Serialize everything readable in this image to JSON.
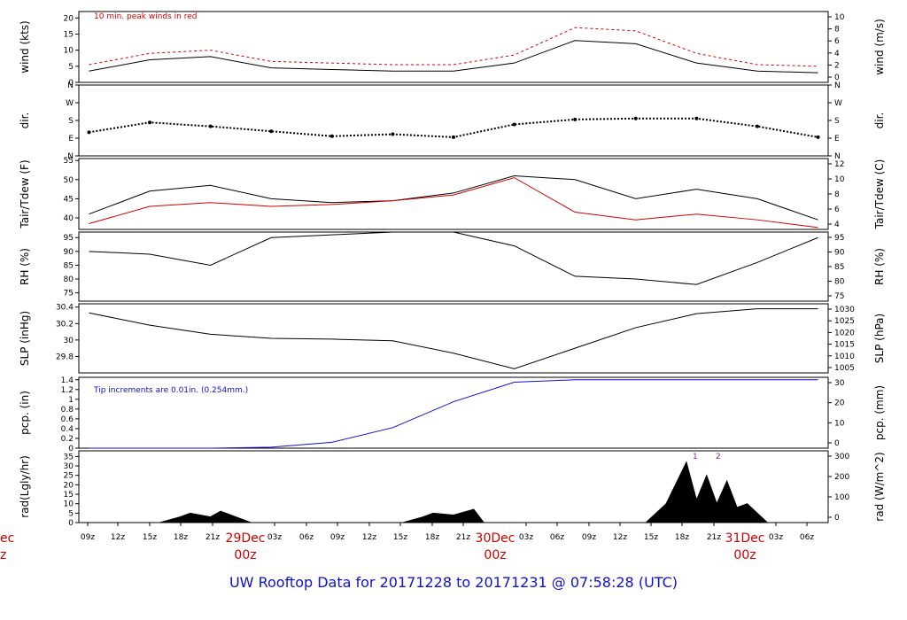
{
  "chart_data": {
    "type": "line",
    "title": "UW Rooftop Data for 20171228  to  20171231 @ 07:58:28  (UTC)",
    "x_tick_labels": [
      "09z",
      "12z",
      "15z",
      "18z",
      "21z",
      "03z",
      "06z",
      "09z",
      "12z",
      "15z",
      "18z",
      "21z",
      "03z",
      "06z",
      "09z",
      "12z",
      "15z",
      "18z",
      "21z",
      "03z",
      "06z"
    ],
    "day_labels": [
      {
        "date": "29Dec",
        "hour": "00z"
      },
      {
        "date": "30Dec",
        "hour": "00z"
      },
      {
        "date": "31Dec",
        "hour": "00z"
      }
    ],
    "edge_day_label": {
      "date": "ec",
      "hour": "z"
    },
    "panels": [
      {
        "id": "wind",
        "ylabel": "wind (kts)",
        "ylabel_right": "wind (m/s)",
        "ylim": [
          0,
          22
        ],
        "yticks": [
          0,
          5,
          10,
          15,
          20
        ],
        "yticks_right": [
          0,
          2,
          4,
          6,
          8,
          10
        ],
        "annotation": "10 min. peak winds in red",
        "series": [
          {
            "x": [
              0,
              6,
              12,
              18,
              24,
              30,
              36,
              42,
              48,
              54,
              60,
              66,
              72
            ],
            "y": [
              3.5,
              7,
              8,
              4.5,
              4,
              3.5,
              3.5,
              6,
              13,
              12,
              6,
              3.5,
              3
            ]
          },
          {
            "x": [
              0,
              6,
              12,
              18,
              24,
              30,
              36,
              42,
              48,
              54,
              60,
              66,
              72
            ],
            "y": [
              5.5,
              9,
              10,
              6.5,
              6,
              5.5,
              5.5,
              8.5,
              17,
              16,
              9,
              5.5,
              5
            ]
          }
        ]
      },
      {
        "id": "dir",
        "ylabel": "dir.",
        "ylabel_right": "dir.",
        "ylim": [
          0,
          360
        ],
        "yticks": [
          "N",
          "E",
          "S",
          "W",
          "N"
        ],
        "series": [
          {
            "x": [
              0,
              6,
              12,
              18,
              24,
              30,
              36,
              42,
              48,
              54,
              60,
              66,
              72
            ],
            "y": [
              120,
              170,
              150,
              125,
              100,
              110,
              95,
              160,
              185,
              190,
              190,
              150,
              95
            ]
          }
        ]
      },
      {
        "id": "tair",
        "ylabel": "Tair/Tdew (F)",
        "ylabel_right": "Tair/Tdew (C)",
        "ylim": [
          37,
          55.5
        ],
        "yticks": [
          40,
          45,
          50,
          55
        ],
        "yticks_right": [
          4,
          6,
          8,
          10,
          12
        ],
        "series": [
          {
            "x": [
              0,
              6,
              12,
              18,
              24,
              30,
              36,
              42,
              48,
              54,
              60,
              66,
              72
            ],
            "y": [
              41,
              47,
              48.5,
              45,
              44,
              44.5,
              46.5,
              51,
              50,
              45,
              47.5,
              45,
              39.5
            ]
          },
          {
            "x": [
              0,
              6,
              12,
              18,
              24,
              30,
              36,
              42,
              48,
              54,
              60,
              66,
              72
            ],
            "y": [
              38.5,
              43,
              44,
              43,
              43.5,
              44.5,
              46,
              50.5,
              41.5,
              39.5,
              41,
              39.5,
              37.5
            ]
          }
        ]
      },
      {
        "id": "rh",
        "ylabel": "RH (%)",
        "ylabel_right": "RH (%)",
        "ylim": [
          72,
          97
        ],
        "yticks": [
          75,
          80,
          85,
          90,
          95
        ],
        "yticks_right": [
          75,
          80,
          85,
          90,
          95
        ],
        "series": [
          {
            "x": [
              0,
              6,
              12,
              18,
              24,
              30,
              36,
              42,
              48,
              54,
              60,
              66,
              72
            ],
            "y": [
              90,
              89,
              85,
              95,
              96,
              97,
              97,
              92,
              81,
              80,
              78,
              86,
              95
            ]
          }
        ]
      },
      {
        "id": "slp",
        "ylabel": "SLP (inHg)",
        "ylabel_right": "SLP (hPa)",
        "ylim": [
          29.6,
          30.44
        ],
        "yticks": [
          29.8,
          30.0,
          30.2,
          30.4
        ],
        "yticks_right": [
          1005,
          1010,
          1015,
          1020,
          1025,
          1030
        ],
        "series": [
          {
            "x": [
              0,
              6,
              12,
              18,
              24,
              30,
              36,
              42,
              48,
              54,
              60,
              66,
              72
            ],
            "y": [
              30.33,
              30.18,
              30.07,
              30.02,
              30.01,
              29.99,
              29.84,
              29.65,
              29.9,
              30.15,
              30.32,
              30.38,
              30.38
            ]
          }
        ]
      },
      {
        "id": "pcp",
        "ylabel": "pcp. (in)",
        "ylabel_right": "pcp. (mm)",
        "ylim": [
          0,
          1.45
        ],
        "yticks": [
          0.0,
          0.2,
          0.4,
          0.6,
          0.8,
          1.0,
          1.2,
          1.4
        ],
        "yticks_right": [
          0,
          10,
          20,
          30
        ],
        "annotation": "Tip increments are 0.01in. (0.254mm.)",
        "series": [
          {
            "x": [
              0,
              6,
              12,
              18,
              24,
              30,
              36,
              42,
              48,
              54,
              60,
              66,
              72
            ],
            "y": [
              0,
              0,
              0,
              0.02,
              0.12,
              0.42,
              0.95,
              1.35,
              1.4,
              1.4,
              1.4,
              1.4,
              1.4
            ]
          }
        ]
      },
      {
        "id": "rad",
        "ylabel": "rad(Lgly/hr)",
        "ylabel_right": "rad (W/m^2)",
        "ylim": [
          0,
          38
        ],
        "yticks": [
          0,
          5,
          10,
          15,
          20,
          25,
          30,
          35
        ],
        "yticks_right": [
          0,
          100,
          200,
          300
        ],
        "markers": [
          "1",
          "2"
        ],
        "series": [
          {
            "x": [
              7,
              9,
              10,
              12,
              13,
              15,
              16,
              31,
              33,
              34,
              36,
              38,
              39,
              55,
              57,
              59,
              60,
              61,
              62,
              63,
              64,
              65,
              67
            ],
            "y": [
              0,
              3,
              5,
              3,
              6,
              2,
              0,
              0,
              3,
              5,
              4,
              7,
              0,
              0,
              10,
              32,
              12,
              25,
              10,
              22,
              8,
              10,
              0
            ]
          }
        ]
      }
    ]
  }
}
